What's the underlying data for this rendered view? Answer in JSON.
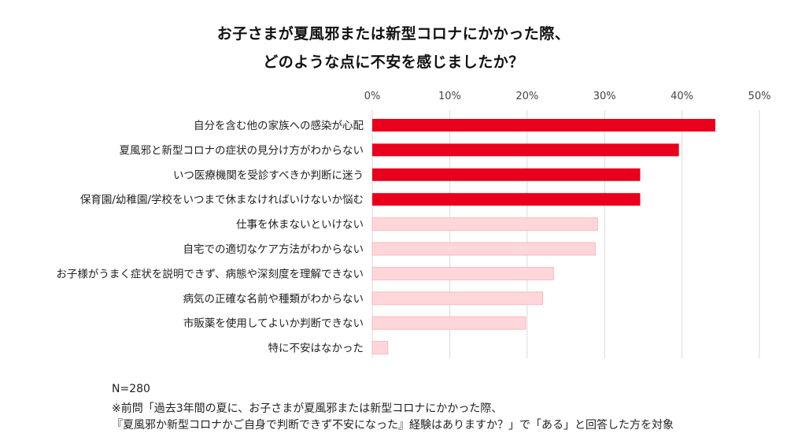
{
  "chart_data": {
    "type": "bar",
    "orientation": "horizontal",
    "title": "お子さまが夏風邪または新型コロナにかかった際、",
    "subtitle": "どのような点に不安を感じましたか？",
    "xlim": [
      0,
      50
    ],
    "x_ticks": [
      "0%",
      "10%",
      "20%",
      "30%",
      "40%",
      "50%"
    ],
    "tick_values": [
      0,
      10,
      20,
      30,
      40,
      50
    ],
    "grid": true,
    "categories": [
      "自分を含む他の家族への感染が心配",
      "夏風邪と新型コロナの症状の見分け方がわからない",
      "いつ医療機関を受診すべきか判断に迷う",
      "保育園/幼稚園/学校をいつまで休まなければいけないか悩む",
      "仕事を休まないといけない",
      "自宅での適切なケア方法がわからない",
      "お子様がうまく症状を説明できず、病態や深刻度を理解できない",
      "病気の正確な名前や種類がわからない",
      "市販薬を使用してよいか判断できない",
      "特に不安はなかった"
    ],
    "values": [
      44.3,
      39.6,
      34.6,
      34.6,
      29.1,
      28.8,
      23.4,
      22.0,
      19.8,
      2.0
    ],
    "highlight_count": 4,
    "colors": {
      "highlight": "#e8001c",
      "normal": "#ffd6d9",
      "normal_edge": "#f7b9bf",
      "grid": "#d9d9d9"
    }
  },
  "footnotes": {
    "n": "N=280",
    "line1": "※前問「過去3年間の夏に、お子さまが夏風邪または新型コロナにかかった際、",
    "line2": "『夏風邪か新型コロナかご自身で判断できず不安になった』経験はありますか？」で「ある」と回答した方を対象"
  }
}
